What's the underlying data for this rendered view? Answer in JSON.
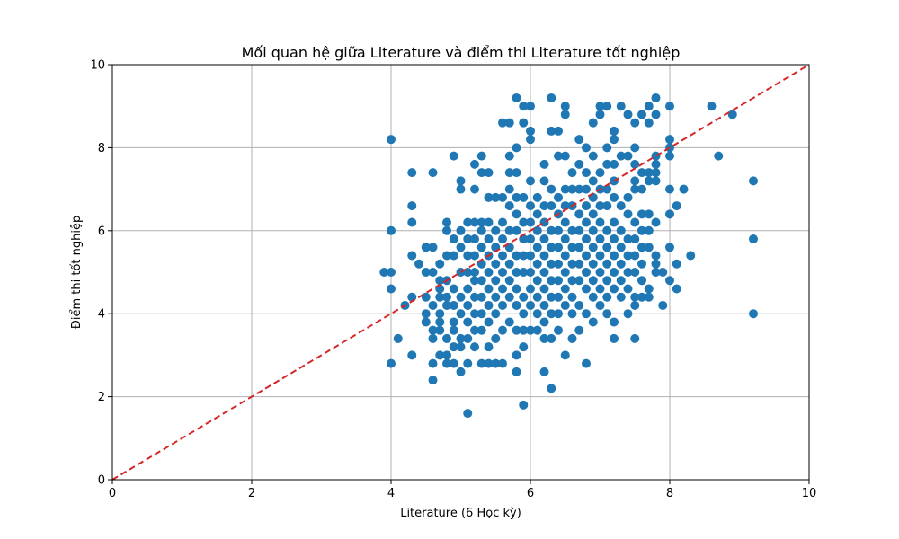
{
  "chart_data": {
    "type": "scatter",
    "title": "Mối quan hệ giữa Literature và điểm thi Literature tốt nghiệp",
    "xlabel": "Literature (6 Học kỳ)",
    "ylabel": "Điểm thi tốt nghiệp",
    "xlim": [
      0,
      10
    ],
    "ylim": [
      0,
      10
    ],
    "xticks": [
      "0",
      "2",
      "4",
      "6",
      "8",
      "10"
    ],
    "yticks": [
      "0",
      "2",
      "4",
      "6",
      "8",
      "10"
    ],
    "grid": true,
    "point_color": "#1f77b4",
    "reference_line": {
      "from": [
        0,
        0
      ],
      "to": [
        10,
        10
      ],
      "color": "#d62728",
      "style": "dashed"
    },
    "points": [
      [
        4.0,
        8.2
      ],
      [
        4.0,
        6.0
      ],
      [
        4.0,
        5.0
      ],
      [
        4.0,
        4.6
      ],
      [
        4.0,
        2.8
      ],
      [
        3.9,
        5.0
      ],
      [
        4.1,
        3.4
      ],
      [
        4.2,
        4.2
      ],
      [
        4.3,
        7.4
      ],
      [
        4.3,
        6.6
      ],
      [
        4.3,
        6.2
      ],
      [
        4.3,
        5.4
      ],
      [
        4.3,
        4.4
      ],
      [
        4.3,
        3.0
      ],
      [
        4.4,
        5.2
      ],
      [
        4.5,
        5.6
      ],
      [
        4.5,
        5.0
      ],
      [
        4.5,
        4.4
      ],
      [
        4.5,
        4.0
      ],
      [
        4.5,
        3.8
      ],
      [
        4.6,
        7.4
      ],
      [
        4.6,
        5.6
      ],
      [
        4.6,
        5.0
      ],
      [
        4.6,
        4.2
      ],
      [
        4.6,
        3.6
      ],
      [
        4.6,
        3.4
      ],
      [
        4.6,
        2.8
      ],
      [
        4.6,
        2.4
      ],
      [
        4.7,
        5.2
      ],
      [
        4.7,
        4.8
      ],
      [
        4.7,
        4.6
      ],
      [
        4.7,
        4.4
      ],
      [
        4.7,
        4.0
      ],
      [
        4.7,
        3.8
      ],
      [
        4.7,
        3.6
      ],
      [
        4.7,
        3.0
      ],
      [
        4.8,
        6.2
      ],
      [
        4.8,
        6.0
      ],
      [
        4.8,
        5.4
      ],
      [
        4.8,
        4.8
      ],
      [
        4.8,
        4.4
      ],
      [
        4.8,
        4.2
      ],
      [
        4.8,
        3.4
      ],
      [
        4.8,
        3.0
      ],
      [
        4.8,
        2.8
      ],
      [
        4.9,
        7.8
      ],
      [
        4.9,
        5.8
      ],
      [
        4.9,
        5.4
      ],
      [
        4.9,
        4.6
      ],
      [
        4.9,
        4.2
      ],
      [
        4.9,
        3.8
      ],
      [
        4.9,
        3.6
      ],
      [
        4.9,
        3.2
      ],
      [
        4.9,
        2.8
      ],
      [
        5.0,
        7.2
      ],
      [
        5.0,
        7.0
      ],
      [
        5.0,
        6.0
      ],
      [
        5.0,
        5.6
      ],
      [
        5.0,
        5.0
      ],
      [
        5.0,
        4.4
      ],
      [
        5.0,
        4.0
      ],
      [
        5.0,
        3.4
      ],
      [
        5.0,
        3.2
      ],
      [
        5.0,
        2.6
      ],
      [
        5.1,
        6.2
      ],
      [
        5.1,
        5.8
      ],
      [
        5.1,
        5.4
      ],
      [
        5.1,
        5.0
      ],
      [
        5.1,
        4.6
      ],
      [
        5.1,
        4.2
      ],
      [
        5.1,
        3.8
      ],
      [
        5.1,
        3.4
      ],
      [
        5.1,
        2.8
      ],
      [
        5.1,
        1.6
      ],
      [
        5.2,
        7.6
      ],
      [
        5.2,
        7.0
      ],
      [
        5.2,
        6.2
      ],
      [
        5.2,
        5.8
      ],
      [
        5.2,
        5.4
      ],
      [
        5.2,
        5.0
      ],
      [
        5.2,
        4.8
      ],
      [
        5.2,
        4.4
      ],
      [
        5.2,
        4.0
      ],
      [
        5.2,
        3.6
      ],
      [
        5.2,
        3.2
      ],
      [
        5.3,
        7.8
      ],
      [
        5.3,
        7.4
      ],
      [
        5.3,
        6.2
      ],
      [
        5.3,
        6.0
      ],
      [
        5.3,
        5.6
      ],
      [
        5.3,
        5.2
      ],
      [
        5.3,
        4.8
      ],
      [
        5.3,
        4.4
      ],
      [
        5.3,
        4.0
      ],
      [
        5.3,
        3.6
      ],
      [
        5.3,
        2.8
      ],
      [
        5.4,
        7.4
      ],
      [
        5.4,
        6.8
      ],
      [
        5.4,
        6.2
      ],
      [
        5.4,
        5.8
      ],
      [
        5.4,
        5.4
      ],
      [
        5.4,
        5.0
      ],
      [
        5.4,
        4.6
      ],
      [
        5.4,
        4.2
      ],
      [
        5.4,
        3.8
      ],
      [
        5.4,
        3.2
      ],
      [
        5.4,
        2.8
      ],
      [
        5.5,
        6.8
      ],
      [
        5.5,
        6.0
      ],
      [
        5.5,
        5.6
      ],
      [
        5.5,
        5.2
      ],
      [
        5.5,
        4.8
      ],
      [
        5.5,
        4.4
      ],
      [
        5.5,
        4.0
      ],
      [
        5.5,
        3.4
      ],
      [
        5.5,
        2.8
      ],
      [
        5.6,
        8.6
      ],
      [
        5.6,
        6.8
      ],
      [
        5.6,
        6.2
      ],
      [
        5.6,
        5.8
      ],
      [
        5.6,
        5.4
      ],
      [
        5.6,
        5.0
      ],
      [
        5.6,
        4.6
      ],
      [
        5.6,
        4.2
      ],
      [
        5.6,
        3.6
      ],
      [
        5.6,
        2.8
      ],
      [
        5.7,
        8.6
      ],
      [
        5.7,
        7.8
      ],
      [
        5.7,
        7.4
      ],
      [
        5.7,
        7.0
      ],
      [
        5.7,
        6.6
      ],
      [
        5.7,
        6.0
      ],
      [
        5.7,
        5.6
      ],
      [
        5.7,
        5.2
      ],
      [
        5.7,
        4.8
      ],
      [
        5.7,
        4.4
      ],
      [
        5.7,
        3.8
      ],
      [
        5.8,
        9.2
      ],
      [
        5.8,
        8.0
      ],
      [
        5.8,
        7.4
      ],
      [
        5.8,
        6.8
      ],
      [
        5.8,
        6.4
      ],
      [
        5.8,
        6.0
      ],
      [
        5.8,
        5.4
      ],
      [
        5.8,
        5.0
      ],
      [
        5.8,
        4.6
      ],
      [
        5.8,
        4.2
      ],
      [
        5.8,
        3.6
      ],
      [
        5.8,
        3.0
      ],
      [
        5.8,
        2.6
      ],
      [
        5.9,
        9.0
      ],
      [
        5.9,
        8.6
      ],
      [
        5.9,
        6.8
      ],
      [
        5.9,
        6.2
      ],
      [
        5.9,
        5.8
      ],
      [
        5.9,
        5.4
      ],
      [
        5.9,
        5.0
      ],
      [
        5.9,
        4.4
      ],
      [
        5.9,
        4.0
      ],
      [
        5.9,
        3.6
      ],
      [
        5.9,
        3.2
      ],
      [
        5.9,
        1.8
      ],
      [
        6.0,
        9.0
      ],
      [
        6.0,
        8.4
      ],
      [
        6.0,
        8.2
      ],
      [
        6.0,
        7.2
      ],
      [
        6.0,
        6.6
      ],
      [
        6.0,
        6.2
      ],
      [
        6.0,
        5.8
      ],
      [
        6.0,
        5.4
      ],
      [
        6.0,
        5.0
      ],
      [
        6.0,
        4.6
      ],
      [
        6.0,
        4.2
      ],
      [
        6.0,
        3.6
      ],
      [
        6.1,
        6.8
      ],
      [
        6.1,
        6.4
      ],
      [
        6.1,
        6.0
      ],
      [
        6.1,
        5.6
      ],
      [
        6.1,
        5.2
      ],
      [
        6.1,
        4.8
      ],
      [
        6.1,
        4.4
      ],
      [
        6.1,
        4.0
      ],
      [
        6.1,
        3.6
      ],
      [
        6.2,
        7.6
      ],
      [
        6.2,
        7.2
      ],
      [
        6.2,
        6.6
      ],
      [
        6.2,
        6.2
      ],
      [
        6.2,
        5.8
      ],
      [
        6.2,
        5.4
      ],
      [
        6.2,
        5.0
      ],
      [
        6.2,
        4.6
      ],
      [
        6.2,
        4.2
      ],
      [
        6.2,
        3.8
      ],
      [
        6.2,
        3.4
      ],
      [
        6.2,
        2.6
      ],
      [
        6.3,
        9.2
      ],
      [
        6.3,
        8.4
      ],
      [
        6.3,
        7.0
      ],
      [
        6.3,
        6.6
      ],
      [
        6.3,
        6.0
      ],
      [
        6.3,
        5.6
      ],
      [
        6.3,
        5.2
      ],
      [
        6.3,
        4.8
      ],
      [
        6.3,
        4.4
      ],
      [
        6.3,
        4.0
      ],
      [
        6.3,
        3.4
      ],
      [
        6.3,
        2.2
      ],
      [
        6.4,
        8.4
      ],
      [
        6.4,
        7.8
      ],
      [
        6.4,
        6.8
      ],
      [
        6.4,
        6.4
      ],
      [
        6.4,
        6.0
      ],
      [
        6.4,
        5.6
      ],
      [
        6.4,
        5.2
      ],
      [
        6.4,
        4.8
      ],
      [
        6.4,
        4.4
      ],
      [
        6.4,
        4.0
      ],
      [
        6.4,
        3.6
      ],
      [
        6.5,
        9.0
      ],
      [
        6.5,
        8.8
      ],
      [
        6.5,
        7.8
      ],
      [
        6.5,
        7.0
      ],
      [
        6.5,
        6.6
      ],
      [
        6.5,
        6.2
      ],
      [
        6.5,
        5.8
      ],
      [
        6.5,
        5.4
      ],
      [
        6.5,
        5.0
      ],
      [
        6.5,
        4.6
      ],
      [
        6.5,
        4.2
      ],
      [
        6.5,
        3.0
      ],
      [
        6.6,
        7.4
      ],
      [
        6.6,
        7.0
      ],
      [
        6.6,
        6.6
      ],
      [
        6.6,
        6.0
      ],
      [
        6.6,
        5.6
      ],
      [
        6.6,
        5.2
      ],
      [
        6.6,
        4.8
      ],
      [
        6.6,
        4.4
      ],
      [
        6.6,
        4.0
      ],
      [
        6.6,
        3.4
      ],
      [
        6.7,
        8.2
      ],
      [
        6.7,
        7.6
      ],
      [
        6.7,
        7.0
      ],
      [
        6.7,
        6.4
      ],
      [
        6.7,
        6.0
      ],
      [
        6.7,
        5.6
      ],
      [
        6.7,
        5.2
      ],
      [
        6.7,
        4.8
      ],
      [
        6.7,
        4.2
      ],
      [
        6.7,
        3.6
      ],
      [
        6.8,
        8.0
      ],
      [
        6.8,
        7.4
      ],
      [
        6.8,
        7.0
      ],
      [
        6.8,
        6.6
      ],
      [
        6.8,
        6.2
      ],
      [
        6.8,
        5.8
      ],
      [
        6.8,
        5.4
      ],
      [
        6.8,
        5.0
      ],
      [
        6.8,
        4.6
      ],
      [
        6.8,
        4.0
      ],
      [
        6.8,
        2.8
      ],
      [
        6.9,
        8.6
      ],
      [
        6.9,
        7.8
      ],
      [
        6.9,
        7.2
      ],
      [
        6.9,
        6.8
      ],
      [
        6.9,
        6.4
      ],
      [
        6.9,
        6.0
      ],
      [
        6.9,
        5.6
      ],
      [
        6.9,
        5.2
      ],
      [
        6.9,
        4.8
      ],
      [
        6.9,
        4.4
      ],
      [
        6.9,
        3.8
      ],
      [
        7.0,
        9.0
      ],
      [
        7.0,
        8.8
      ],
      [
        7.0,
        7.4
      ],
      [
        7.0,
        7.0
      ],
      [
        7.0,
        6.6
      ],
      [
        7.0,
        6.2
      ],
      [
        7.0,
        5.8
      ],
      [
        7.0,
        5.4
      ],
      [
        7.0,
        5.0
      ],
      [
        7.0,
        4.6
      ],
      [
        7.0,
        4.2
      ],
      [
        7.1,
        9.0
      ],
      [
        7.1,
        8.0
      ],
      [
        7.1,
        7.6
      ],
      [
        7.1,
        7.0
      ],
      [
        7.1,
        6.6
      ],
      [
        7.1,
        6.0
      ],
      [
        7.1,
        5.6
      ],
      [
        7.1,
        5.2
      ],
      [
        7.1,
        4.8
      ],
      [
        7.1,
        4.4
      ],
      [
        7.1,
        4.0
      ],
      [
        7.2,
        8.4
      ],
      [
        7.2,
        8.2
      ],
      [
        7.2,
        7.6
      ],
      [
        7.2,
        7.2
      ],
      [
        7.2,
        6.8
      ],
      [
        7.2,
        6.2
      ],
      [
        7.2,
        5.8
      ],
      [
        7.2,
        5.4
      ],
      [
        7.2,
        5.0
      ],
      [
        7.2,
        4.6
      ],
      [
        7.2,
        3.8
      ],
      [
        7.2,
        3.4
      ],
      [
        7.3,
        9.0
      ],
      [
        7.3,
        7.8
      ],
      [
        7.3,
        6.6
      ],
      [
        7.3,
        6.0
      ],
      [
        7.3,
        5.6
      ],
      [
        7.3,
        5.2
      ],
      [
        7.3,
        4.8
      ],
      [
        7.3,
        4.4
      ],
      [
        7.4,
        8.8
      ],
      [
        7.4,
        7.8
      ],
      [
        7.4,
        6.8
      ],
      [
        7.4,
        6.4
      ],
      [
        7.4,
        5.8
      ],
      [
        7.4,
        5.4
      ],
      [
        7.4,
        5.0
      ],
      [
        7.4,
        4.6
      ],
      [
        7.4,
        4.0
      ],
      [
        7.5,
        8.6
      ],
      [
        7.5,
        8.0
      ],
      [
        7.5,
        7.6
      ],
      [
        7.5,
        7.2
      ],
      [
        7.5,
        7.0
      ],
      [
        7.5,
        6.2
      ],
      [
        7.5,
        5.8
      ],
      [
        7.5,
        5.4
      ],
      [
        7.5,
        5.0
      ],
      [
        7.5,
        4.4
      ],
      [
        7.5,
        4.2
      ],
      [
        7.5,
        3.4
      ],
      [
        7.6,
        8.8
      ],
      [
        7.6,
        7.4
      ],
      [
        7.6,
        7.0
      ],
      [
        7.6,
        6.4
      ],
      [
        7.6,
        6.0
      ],
      [
        7.6,
        5.6
      ],
      [
        7.6,
        5.2
      ],
      [
        7.6,
        4.8
      ],
      [
        7.6,
        4.4
      ],
      [
        7.7,
        9.0
      ],
      [
        7.7,
        8.6
      ],
      [
        7.7,
        7.4
      ],
      [
        7.7,
        7.2
      ],
      [
        7.7,
        6.4
      ],
      [
        7.7,
        6.0
      ],
      [
        7.7,
        5.6
      ],
      [
        7.7,
        4.6
      ],
      [
        7.7,
        4.4
      ],
      [
        7.8,
        9.2
      ],
      [
        7.8,
        8.8
      ],
      [
        7.8,
        7.8
      ],
      [
        7.8,
        7.6
      ],
      [
        7.8,
        7.4
      ],
      [
        7.8,
        7.2
      ],
      [
        7.8,
        6.2
      ],
      [
        7.8,
        5.4
      ],
      [
        7.8,
        5.2
      ],
      [
        7.8,
        5.0
      ],
      [
        7.9,
        5.0
      ],
      [
        7.9,
        4.2
      ],
      [
        8.0,
        9.0
      ],
      [
        8.0,
        8.2
      ],
      [
        8.0,
        8.0
      ],
      [
        8.0,
        7.8
      ],
      [
        8.0,
        7.0
      ],
      [
        8.0,
        6.4
      ],
      [
        8.0,
        5.6
      ],
      [
        8.0,
        4.8
      ],
      [
        8.1,
        6.6
      ],
      [
        8.1,
        5.2
      ],
      [
        8.1,
        4.6
      ],
      [
        8.2,
        7.0
      ],
      [
        8.3,
        5.4
      ],
      [
        8.6,
        9.0
      ],
      [
        8.7,
        7.8
      ],
      [
        8.9,
        8.8
      ],
      [
        9.2,
        7.2
      ],
      [
        9.2,
        5.8
      ],
      [
        9.2,
        4.0
      ]
    ]
  }
}
